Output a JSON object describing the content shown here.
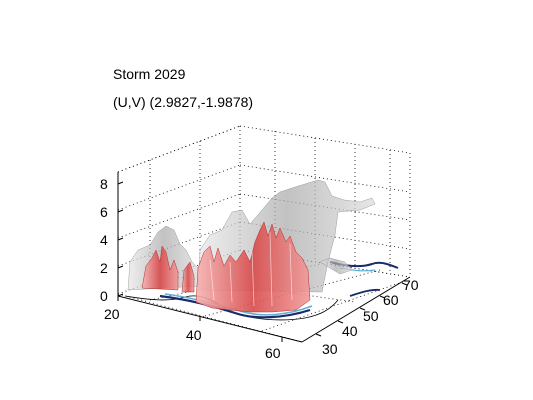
{
  "figure": {
    "title": "Storm 2029",
    "subtitle": "(U,V) (2.9827,-1.9878)"
  },
  "colors": {
    "background": "#ffffff",
    "cloud_isosurface": "#d4d4d4",
    "core_isosurface": "#e46a6a",
    "contour_dark": "#1a2a6a",
    "contour_light": "#5fb0d8"
  },
  "chart_data": {
    "type": "3d-surface",
    "title": "Storm 2029",
    "subtitle": "(U,V) (2.9827,-1.9878)",
    "xlabel": "",
    "ylabel": "",
    "zlabel": "",
    "x_ticks": [
      "20",
      "40",
      "60"
    ],
    "y_ticks": [
      "30",
      "40",
      "50",
      "60",
      "70"
    ],
    "z_ticks": [
      "0",
      "2",
      "4",
      "6",
      "8"
    ],
    "xlim": [
      20,
      65
    ],
    "ylim": [
      28,
      72
    ],
    "zlim": [
      0,
      9
    ],
    "grid": true,
    "series": [
      {
        "type": "isosurface",
        "color": "gray",
        "alpha": 0.6
      },
      {
        "type": "isosurface",
        "color": "red",
        "alpha": 0.85
      },
      {
        "type": "contour-slice",
        "plane": "z=0"
      }
    ]
  }
}
